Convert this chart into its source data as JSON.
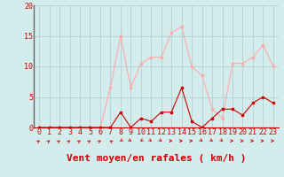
{
  "x": [
    0,
    1,
    2,
    3,
    4,
    5,
    6,
    7,
    8,
    9,
    10,
    11,
    12,
    13,
    14,
    15,
    16,
    17,
    18,
    19,
    20,
    21,
    22,
    23
  ],
  "wind_avg": [
    0,
    0,
    0,
    0,
    0,
    0,
    0,
    0,
    2.5,
    0,
    1.5,
    1.0,
    2.5,
    2.5,
    6.5,
    1.0,
    0,
    1.5,
    3.0,
    3.0,
    2.0,
    4.0,
    5.0,
    4.0
  ],
  "wind_gust": [
    0,
    0,
    0,
    0,
    0,
    0,
    0,
    6.5,
    15.0,
    6.5,
    10.5,
    11.5,
    11.5,
    15.5,
    16.5,
    10.0,
    8.5,
    3.0,
    1.5,
    10.5,
    10.5,
    11.5,
    13.5,
    10.0
  ],
  "wind_dir_angles": [
    225,
    225,
    225,
    225,
    225,
    225,
    225,
    135,
    45,
    315,
    45,
    315,
    315,
    270,
    270,
    270,
    315,
    315,
    315,
    270,
    270,
    270,
    270,
    270
  ],
  "avg_color": "#cc0000",
  "gust_color": "#ffaaaa",
  "bg_color": "#d4ecec",
  "grid_color": "#aacccc",
  "xlabel": "Vent moyen/en rafales ( km/h )",
  "ylim": [
    0,
    20
  ],
  "yticks": [
    0,
    5,
    10,
    15,
    20
  ],
  "xticks": [
    0,
    1,
    2,
    3,
    4,
    5,
    6,
    7,
    8,
    9,
    10,
    11,
    12,
    13,
    14,
    15,
    16,
    17,
    18,
    19,
    20,
    21,
    22,
    23
  ],
  "tick_fontsize": 6,
  "xlabel_fontsize": 8
}
